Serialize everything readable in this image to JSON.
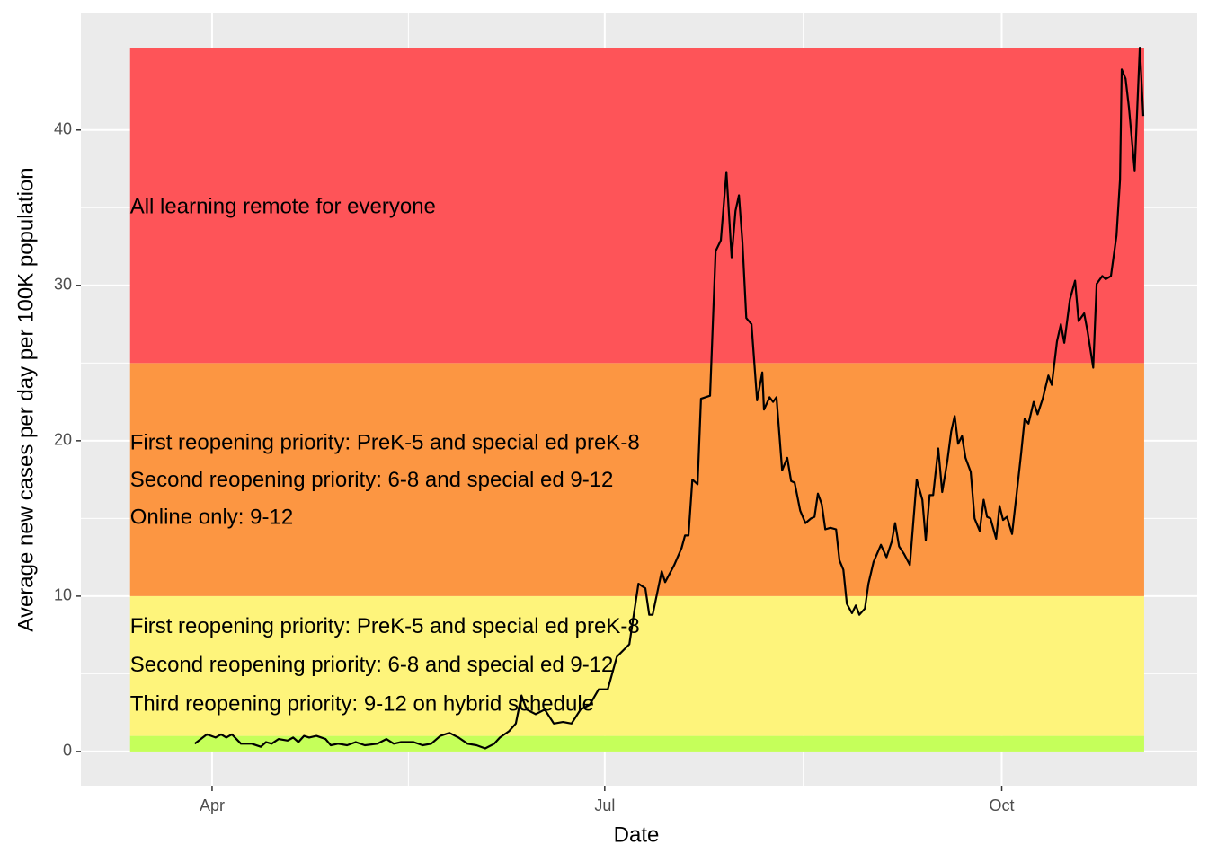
{
  "chart_data": {
    "type": "line",
    "xlabel": "Date",
    "ylabel": "Average new cases per day per 100K population",
    "x": [
      88.0,
      90.8,
      92.8,
      94.1,
      95.3,
      96.6,
      98.7,
      101.2,
      103.3,
      104.5,
      105.8,
      107.4,
      109.5,
      110.8,
      112.0,
      113.3,
      114.5,
      116.2,
      118.3,
      119.5,
      121.2,
      123.3,
      125.3,
      127.4,
      130.3,
      132.4,
      134.1,
      135.8,
      138.7,
      140.8,
      142.8,
      144.9,
      147.0,
      149.1,
      151.2,
      153.3,
      155.3,
      157.4,
      158.7,
      160.8,
      162.4,
      163.7,
      164.9,
      167.0,
      169.1,
      171.2,
      173.3,
      175.3,
      177.4,
      179.5,
      181.6,
      183.7,
      185.8,
      188.7,
      190.8,
      192.4,
      193.3,
      194.1,
      196.2,
      197.0,
      199.1,
      200.8,
      201.6,
      202.4,
      203.3,
      204.5,
      205.3,
      207.4,
      208.7,
      209.9,
      211.2,
      212.4,
      213.3,
      214.1,
      214.9,
      215.8,
      217.0,
      218.3,
      219.5,
      219.9,
      221.2,
      222.0,
      222.8,
      224.1,
      225.3,
      226.2,
      227.0,
      228.3,
      229.5,
      230.8,
      231.6,
      232.4,
      233.3,
      234.1,
      235.3,
      236.6,
      237.4,
      238.3,
      239.1,
      240.3,
      241.2,
      242.0,
      243.3,
      244.1,
      245.3,
      247.0,
      248.3,
      249.5,
      250.3,
      251.2,
      252.4,
      253.7,
      255.3,
      256.6,
      257.4,
      258.3,
      259.1,
      260.3,
      261.2,
      262.4,
      263.3,
      264.1,
      264.9,
      265.8,
      266.6,
      267.8,
      268.7,
      269.9,
      270.8,
      271.6,
      272.4,
      273.7,
      274.5,
      275.3,
      276.2,
      277.4,
      278.7,
      279.5,
      280.3,
      281.2,
      282.4,
      283.3,
      284.5,
      285.8,
      286.6,
      287.8,
      288.7,
      289.5,
      290.8,
      292.0,
      292.8,
      294.1,
      294.9,
      296.2,
      297.0,
      298.3,
      299.1,
      300.3,
      301.6,
      302.4,
      302.8,
      303.7,
      304.5,
      305.8,
      307.0,
      307.8
    ],
    "values": [
      0.5,
      1.1,
      0.9,
      1.1,
      0.9,
      1.1,
      0.5,
      0.5,
      0.3,
      0.6,
      0.5,
      0.8,
      0.7,
      0.9,
      0.6,
      1.0,
      0.9,
      1.0,
      0.8,
      0.4,
      0.5,
      0.4,
      0.6,
      0.4,
      0.5,
      0.8,
      0.5,
      0.6,
      0.6,
      0.4,
      0.5,
      1.0,
      1.2,
      0.9,
      0.5,
      0.4,
      0.2,
      0.5,
      0.9,
      1.3,
      1.8,
      3.6,
      2.7,
      2.4,
      2.7,
      1.8,
      1.9,
      1.8,
      2.7,
      3.0,
      4.0,
      4.0,
      6.1,
      6.9,
      10.8,
      10.5,
      8.8,
      8.8,
      11.6,
      10.9,
      12.0,
      13.1,
      13.9,
      13.9,
      17.5,
      17.2,
      22.7,
      22.9,
      32.2,
      32.9,
      37.3,
      31.8,
      34.8,
      35.8,
      32.8,
      27.9,
      27.5,
      22.6,
      24.4,
      22.0,
      22.8,
      22.5,
      22.8,
      18.1,
      18.9,
      17.4,
      17.3,
      15.5,
      14.7,
      15.0,
      15.1,
      16.6,
      15.9,
      14.3,
      14.4,
      14.3,
      12.3,
      11.7,
      9.5,
      8.9,
      9.4,
      8.8,
      9.2,
      10.8,
      12.2,
      13.3,
      12.5,
      13.5,
      14.7,
      13.2,
      12.7,
      12.0,
      17.5,
      16.2,
      13.6,
      16.5,
      16.5,
      19.5,
      16.7,
      18.7,
      20.6,
      21.6,
      19.8,
      20.3,
      18.9,
      18.0,
      15.0,
      14.2,
      16.2,
      15.1,
      15.0,
      13.7,
      15.8,
      14.9,
      15.1,
      14.0,
      17.2,
      19.2,
      21.4,
      21.1,
      22.5,
      21.7,
      22.7,
      24.2,
      23.6,
      26.4,
      27.5,
      26.3,
      29.1,
      30.3,
      27.7,
      28.2,
      27.0,
      24.7,
      30.1,
      30.6,
      30.4,
      30.6,
      33.2,
      36.8,
      43.9,
      43.3,
      41.4,
      37.4,
      45.3,
      40.9
    ],
    "color": "#000000",
    "band_x": [
      73,
      308
    ],
    "bands": [
      {
        "ymin": 0,
        "ymax": 1,
        "color": "#c5ff5a"
      },
      {
        "ymin": 1,
        "ymax": 10,
        "color": "#fef47b"
      },
      {
        "ymin": 10,
        "ymax": 25,
        "color": "#fc9642"
      },
      {
        "ymin": 25,
        "ymax": 45.3,
        "color": "#fe5458"
      }
    ],
    "annotations": [
      {
        "text": "All learning remote for everyone",
        "x": 73,
        "y": 35
      },
      {
        "text": "First reopening priority: PreK-5 and special ed preK-8",
        "x": 73,
        "y": 19.8
      },
      {
        "text": "Second reopening priority: 6-8 and special ed 9-12",
        "x": 73,
        "y": 17.4
      },
      {
        "text": "Online only: 9-12",
        "x": 73,
        "y": 15
      },
      {
        "text": "First reopening priority: PreK-5 and special ed preK-8",
        "x": 73,
        "y": 8
      },
      {
        "text": "Second reopening priority: 6-8 and special ed 9-12",
        "x": 73,
        "y": 5.5
      },
      {
        "text": "Third reopening priority: 9-12 on hybrid schedule",
        "x": 73,
        "y": 3
      }
    ],
    "xlim": [
      61.6,
      320.3
    ],
    "xticks": [
      {
        "value": 92,
        "label": "Apr"
      },
      {
        "value": 183,
        "label": "Jul"
      },
      {
        "value": 275,
        "label": "Oct"
      }
    ],
    "ylim": [
      -2.2,
      47.5
    ],
    "yticks": [
      0,
      10,
      20,
      30,
      40
    ],
    "grid": true
  }
}
